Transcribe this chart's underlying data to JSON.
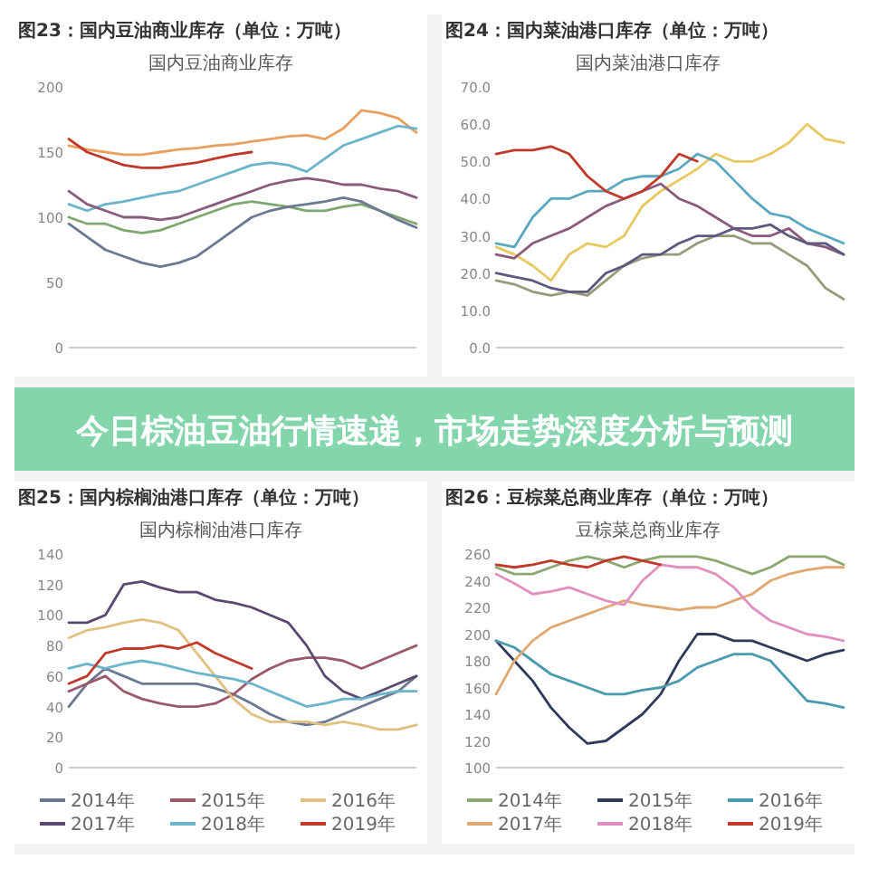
{
  "chart_data": [
    {
      "type": "other",
      "title": "今日棕油豆油行情速递，市场走势深度分析与预测"
    },
    {
      "type": "line",
      "title": "图23：国内豆油商业库存（单位：万吨）",
      "subtitle": "国内豆油商业库存",
      "categories": [
        null,
        null,
        null,
        null,
        null,
        null,
        null,
        null,
        null,
        null,
        null,
        null,
        null,
        null,
        null,
        null,
        null,
        null,
        null,
        null
      ],
      "ylim": [
        0,
        200
      ],
      "yticks": [
        0,
        50,
        100,
        150,
        200
      ],
      "series": [
        {
          "color": "#e8a060",
          "values": [
            155,
            152,
            150,
            148,
            148,
            150,
            152,
            153,
            155,
            156,
            158,
            160,
            162,
            163,
            160,
            168,
            182,
            180,
            176,
            165
          ]
        },
        {
          "color": "#6bb5cc",
          "values": [
            110,
            105,
            110,
            112,
            115,
            118,
            120,
            125,
            130,
            135,
            140,
            142,
            140,
            135,
            145,
            155,
            160,
            165,
            170,
            168
          ]
        },
        {
          "color": "#8a5a7a",
          "values": [
            120,
            110,
            105,
            100,
            100,
            98,
            100,
            105,
            110,
            115,
            120,
            125,
            128,
            130,
            128,
            125,
            125,
            122,
            120,
            115
          ]
        },
        {
          "color": "#7ea870",
          "values": [
            100,
            95,
            95,
            90,
            88,
            90,
            95,
            100,
            105,
            110,
            112,
            110,
            108,
            105,
            105,
            108,
            110,
            105,
            100,
            95
          ]
        },
        {
          "color": "#6a7890",
          "values": [
            95,
            85,
            75,
            70,
            65,
            62,
            65,
            70,
            80,
            90,
            100,
            105,
            108,
            110,
            112,
            115,
            112,
            105,
            98,
            92
          ]
        },
        {
          "color": "#c0392b",
          "values": [
            160,
            150,
            145,
            140,
            138,
            138,
            140,
            142,
            145,
            148,
            150,
            null,
            null,
            null,
            null,
            null,
            null,
            null,
            null,
            null
          ]
        }
      ]
    },
    {
      "type": "line",
      "title": "图24：国内菜油港口库存（单位：万吨）",
      "subtitle": "国内菜油港口库存",
      "categories": [
        null,
        null,
        null,
        null,
        null,
        null,
        null,
        null,
        null,
        null,
        null,
        null,
        null,
        null,
        null,
        null,
        null,
        null,
        null,
        null
      ],
      "ylim": [
        0,
        70
      ],
      "yticks": [
        {
          "value": 0,
          "label": "0.0"
        },
        {
          "value": 10,
          "label": "10.0"
        },
        {
          "value": 20,
          "label": "20.0"
        },
        {
          "value": 30,
          "label": "30.0"
        },
        {
          "value": 40,
          "label": "40.0"
        },
        {
          "value": 50,
          "label": "50.0"
        },
        {
          "value": 60,
          "label": "60.0"
        },
        {
          "value": 70,
          "label": "70.0"
        }
      ],
      "series": [
        {
          "color": "#e8c860",
          "values": [
            27,
            25,
            22,
            18,
            25,
            28,
            27,
            30,
            38,
            42,
            45,
            48,
            52,
            50,
            50,
            52,
            55,
            60,
            56,
            55
          ]
        },
        {
          "color": "#5aa8c0",
          "values": [
            28,
            27,
            35,
            40,
            40,
            42,
            42,
            45,
            46,
            46,
            48,
            52,
            50,
            45,
            40,
            36,
            35,
            32,
            30,
            28
          ]
        },
        {
          "color": "#8a5a7a",
          "values": [
            25,
            24,
            28,
            30,
            32,
            35,
            38,
            40,
            42,
            44,
            40,
            38,
            35,
            32,
            30,
            30,
            32,
            28,
            27,
            25
          ]
        },
        {
          "color": "#9a9a7a",
          "values": [
            18,
            17,
            15,
            14,
            15,
            14,
            18,
            22,
            24,
            25,
            25,
            28,
            30,
            30,
            28,
            28,
            25,
            22,
            16,
            13
          ]
        },
        {
          "color": "#5a5a80",
          "values": [
            20,
            19,
            18,
            16,
            15,
            15,
            20,
            22,
            25,
            25,
            28,
            30,
            30,
            32,
            32,
            33,
            30,
            28,
            28,
            25
          ]
        },
        {
          "color": "#c0392b",
          "values": [
            52,
            53,
            53,
            54,
            52,
            46,
            42,
            40,
            42,
            46,
            52,
            50,
            null,
            null,
            null,
            null,
            null,
            null,
            null,
            null
          ]
        }
      ]
    },
    {
      "type": "line",
      "title": "图25：国内棕榈油港口库存（单位：万吨）",
      "subtitle": "国内棕榈油港口库存",
      "categories": [
        null,
        null,
        null,
        null,
        null,
        null,
        null,
        null,
        null,
        null,
        null,
        null,
        null,
        null,
        null,
        null,
        null,
        null,
        null,
        null
      ],
      "ylim": [
        0,
        140
      ],
      "yticks": [
        0,
        20,
        40,
        60,
        80,
        100,
        120,
        140
      ],
      "legend": "bottom",
      "series": [
        {
          "name": "2014年",
          "color": "#6a7890",
          "values": [
            40,
            55,
            65,
            60,
            55,
            55,
            55,
            55,
            52,
            48,
            42,
            35,
            30,
            28,
            30,
            35,
            40,
            45,
            50,
            60
          ]
        },
        {
          "name": "2015年",
          "color": "#9a5a6a",
          "values": [
            50,
            55,
            60,
            50,
            45,
            42,
            40,
            40,
            42,
            48,
            58,
            65,
            70,
            72,
            72,
            70,
            65,
            70,
            75,
            80
          ]
        },
        {
          "name": "2016年",
          "color": "#e0c080",
          "values": [
            85,
            90,
            92,
            95,
            97,
            95,
            90,
            75,
            60,
            45,
            35,
            30,
            30,
            30,
            28,
            30,
            28,
            25,
            25,
            28
          ]
        },
        {
          "name": "2017年",
          "color": "#5a4a70",
          "values": [
            95,
            95,
            100,
            120,
            122,
            118,
            115,
            115,
            110,
            108,
            105,
            100,
            95,
            80,
            60,
            50,
            45,
            50,
            55,
            60
          ]
        },
        {
          "name": "2018年",
          "color": "#6bb5cc",
          "values": [
            65,
            68,
            65,
            68,
            70,
            68,
            65,
            62,
            60,
            58,
            55,
            50,
            45,
            40,
            42,
            45,
            45,
            48,
            50,
            50
          ]
        },
        {
          "name": "2019年",
          "color": "#c0392b",
          "values": [
            55,
            60,
            75,
            78,
            78,
            80,
            78,
            82,
            75,
            70,
            65,
            null,
            null,
            null,
            null,
            null,
            null,
            null,
            null,
            null
          ]
        }
      ]
    },
    {
      "type": "line",
      "title": "图26：豆棕菜总商业库存（单位：万吨）",
      "subtitle": "豆棕菜总商业库存",
      "categories": [
        null,
        null,
        null,
        null,
        null,
        null,
        null,
        null,
        null,
        null,
        null,
        null,
        null,
        null,
        null,
        null,
        null,
        null,
        null,
        null
      ],
      "ylim": [
        100,
        260
      ],
      "yticks": [
        100,
        120,
        140,
        160,
        180,
        200,
        220,
        240,
        260
      ],
      "legend": "bottom",
      "series": [
        {
          "name": "2014年",
          "color": "#8aa870",
          "values": [
            250,
            245,
            245,
            250,
            255,
            258,
            255,
            250,
            255,
            258,
            258,
            258,
            255,
            250,
            245,
            250,
            258,
            258,
            258,
            252
          ]
        },
        {
          "name": "2015年",
          "color": "#2f3a5a",
          "values": [
            195,
            180,
            165,
            145,
            130,
            118,
            120,
            130,
            140,
            155,
            180,
            200,
            200,
            195,
            195,
            190,
            185,
            180,
            185,
            188
          ]
        },
        {
          "name": "2016年",
          "color": "#4a9ab0",
          "values": [
            195,
            190,
            180,
            170,
            165,
            160,
            155,
            155,
            158,
            160,
            165,
            175,
            180,
            185,
            185,
            180,
            165,
            150,
            148,
            145
          ]
        },
        {
          "name": "2017年",
          "color": "#e0a870",
          "values": [
            155,
            180,
            195,
            205,
            210,
            215,
            220,
            225,
            222,
            220,
            218,
            220,
            220,
            225,
            230,
            240,
            245,
            248,
            250,
            250
          ]
        },
        {
          "name": "2018年",
          "color": "#e090c0",
          "values": [
            245,
            238,
            230,
            232,
            235,
            230,
            225,
            222,
            240,
            252,
            250,
            250,
            245,
            235,
            220,
            210,
            205,
            200,
            198,
            195
          ]
        },
        {
          "name": "2019年",
          "color": "#c0392b",
          "values": [
            252,
            250,
            252,
            255,
            252,
            250,
            255,
            258,
            255,
            252,
            null,
            null,
            null,
            null,
            null,
            null,
            null,
            null,
            null,
            null
          ]
        }
      ]
    }
  ]
}
